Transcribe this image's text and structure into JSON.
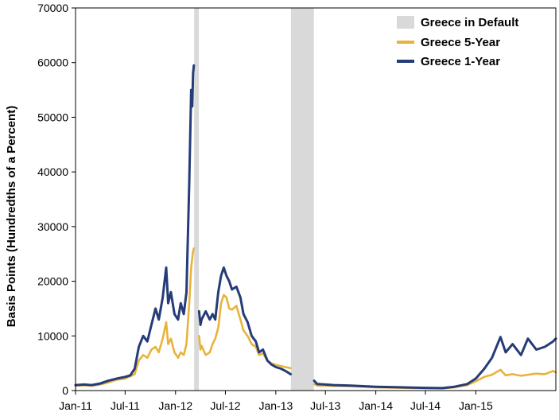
{
  "chart_data": {
    "type": "line",
    "title": "",
    "xlabel": "",
    "ylabel": "Basis Points (Hundredths of a Percent)",
    "ylim": [
      0,
      70000
    ],
    "xlim": [
      "2011-01-01",
      "2015-10-20"
    ],
    "grid": false,
    "legend_position": "top-right",
    "y_ticks": [
      "0",
      "10000",
      "20000",
      "30000",
      "40000",
      "50000",
      "60000",
      "70000"
    ],
    "x_ticks": [
      {
        "label": "Jan-11",
        "date": "2011-01-01"
      },
      {
        "label": "Jul-11",
        "date": "2011-07-01"
      },
      {
        "label": "Jan-12",
        "date": "2012-01-01"
      },
      {
        "label": "Jul-12",
        "date": "2012-07-01"
      },
      {
        "label": "Jan-13",
        "date": "2013-01-01"
      },
      {
        "label": "Jul-13",
        "date": "2013-07-01"
      },
      {
        "label": "Jan-14",
        "date": "2014-01-01"
      },
      {
        "label": "Jul-14",
        "date": "2014-07-01"
      },
      {
        "label": "Jan-15",
        "date": "2015-01-01"
      }
    ],
    "default_periods": {
      "name": "Greece in Default",
      "color": "#d9d9d9",
      "ranges": [
        [
          "2012-03-09",
          "2012-03-26"
        ],
        [
          "2013-02-25",
          "2013-05-20"
        ]
      ]
    },
    "series": [
      {
        "name": "Greece 5-Year",
        "color": "#e8b33c",
        "segments": [
          [
            [
              "2011-01-01",
              900
            ],
            [
              "2011-02-01",
              950
            ],
            [
              "2011-03-01",
              900
            ],
            [
              "2011-04-01",
              1100
            ],
            [
              "2011-05-01",
              1500
            ],
            [
              "2011-06-01",
              2000
            ],
            [
              "2011-07-01",
              2200
            ],
            [
              "2011-07-20",
              2600
            ],
            [
              "2011-08-05",
              3000
            ],
            [
              "2011-08-20",
              5500
            ],
            [
              "2011-09-05",
              6500
            ],
            [
              "2011-09-20",
              6000
            ],
            [
              "2011-10-05",
              7500
            ],
            [
              "2011-10-20",
              8000
            ],
            [
              "2011-11-01",
              7000
            ],
            [
              "2011-11-15",
              9500
            ],
            [
              "2011-11-28",
              12500
            ],
            [
              "2011-12-05",
              8500
            ],
            [
              "2011-12-15",
              9500
            ],
            [
              "2011-12-28",
              7000
            ],
            [
              "2012-01-10",
              6000
            ],
            [
              "2012-01-20",
              7000
            ],
            [
              "2012-01-31",
              6500
            ],
            [
              "2012-02-10",
              8500
            ],
            [
              "2012-02-20",
              16000
            ],
            [
              "2012-02-27",
              22500
            ],
            [
              "2012-03-05",
              25500
            ],
            [
              "2012-03-08",
              26000
            ]
          ],
          [
            [
              "2012-03-27",
              10000
            ],
            [
              "2012-04-01",
              7500
            ],
            [
              "2012-04-05",
              8200
            ],
            [
              "2012-04-20",
              6500
            ],
            [
              "2012-05-05",
              7000
            ],
            [
              "2012-05-15",
              8500
            ],
            [
              "2012-05-25",
              9500
            ],
            [
              "2012-06-05",
              11500
            ],
            [
              "2012-06-15",
              16000
            ],
            [
              "2012-06-25",
              17500
            ],
            [
              "2012-07-05",
              17000
            ],
            [
              "2012-07-15",
              15000
            ],
            [
              "2012-07-25",
              14800
            ],
            [
              "2012-08-10",
              15500
            ],
            [
              "2012-08-25",
              13000
            ],
            [
              "2012-09-05",
              11000
            ],
            [
              "2012-09-20",
              10000
            ],
            [
              "2012-10-05",
              8500
            ],
            [
              "2012-10-20",
              8000
            ],
            [
              "2012-11-01",
              6500
            ],
            [
              "2012-11-15",
              6800
            ],
            [
              "2012-12-01",
              5500
            ],
            [
              "2012-12-15",
              5000
            ],
            [
              "2013-01-01",
              4700
            ],
            [
              "2013-01-20",
              4500
            ],
            [
              "2013-02-05",
              4300
            ],
            [
              "2013-02-24",
              4100
            ]
          ],
          [
            [
              "2013-05-21",
              1200
            ],
            [
              "2013-06-01",
              900
            ],
            [
              "2013-07-01",
              900
            ],
            [
              "2013-08-01",
              850
            ],
            [
              "2013-10-01",
              800
            ],
            [
              "2014-01-01",
              600
            ],
            [
              "2014-04-01",
              500
            ],
            [
              "2014-07-01",
              420
            ],
            [
              "2014-09-01",
              400
            ],
            [
              "2014-10-15",
              600
            ],
            [
              "2014-12-01",
              1000
            ],
            [
              "2015-01-01",
              1700
            ],
            [
              "2015-02-01",
              2500
            ],
            [
              "2015-03-01",
              2900
            ],
            [
              "2015-04-01",
              3800
            ],
            [
              "2015-04-20",
              2800
            ],
            [
              "2015-05-15",
              3000
            ],
            [
              "2015-06-15",
              2700
            ],
            [
              "2015-07-10",
              2900
            ],
            [
              "2015-08-10",
              3100
            ],
            [
              "2015-09-10",
              3000
            ],
            [
              "2015-10-10",
              3600
            ],
            [
              "2015-10-20",
              3300
            ]
          ]
        ]
      },
      {
        "name": "Greece 1-Year",
        "color": "#253c78",
        "segments": [
          [
            [
              "2011-01-01",
              1000
            ],
            [
              "2011-02-01",
              1100
            ],
            [
              "2011-03-01",
              1000
            ],
            [
              "2011-04-01",
              1300
            ],
            [
              "2011-05-01",
              1800
            ],
            [
              "2011-06-01",
              2200
            ],
            [
              "2011-07-01",
              2500
            ],
            [
              "2011-07-20",
              2800
            ],
            [
              "2011-08-05",
              4000
            ],
            [
              "2011-08-20",
              8000
            ],
            [
              "2011-09-05",
              10000
            ],
            [
              "2011-09-20",
              9000
            ],
            [
              "2011-10-05",
              12000
            ],
            [
              "2011-10-20",
              15000
            ],
            [
              "2011-11-01",
              13000
            ],
            [
              "2011-11-15",
              17000
            ],
            [
              "2011-11-28",
              22500
            ],
            [
              "2011-12-05",
              16000
            ],
            [
              "2011-12-15",
              18000
            ],
            [
              "2011-12-28",
              14000
            ],
            [
              "2012-01-10",
              13000
            ],
            [
              "2012-01-20",
              16000
            ],
            [
              "2012-01-31",
              14000
            ],
            [
              "2012-02-10",
              18000
            ],
            [
              "2012-02-20",
              38000
            ],
            [
              "2012-02-27",
              55000
            ],
            [
              "2012-03-02",
              52000
            ],
            [
              "2012-03-05",
              58000
            ],
            [
              "2012-03-08",
              59500
            ]
          ],
          [
            [
              "2012-03-27",
              14500
            ],
            [
              "2012-04-01",
              12000
            ],
            [
              "2012-04-05",
              13000
            ],
            [
              "2012-04-20",
              14500
            ],
            [
              "2012-05-05",
              13000
            ],
            [
              "2012-05-15",
              14000
            ],
            [
              "2012-05-25",
              13000
            ],
            [
              "2012-06-05",
              18000
            ],
            [
              "2012-06-15",
              21000
            ],
            [
              "2012-06-25",
              22500
            ],
            [
              "2012-07-05",
              21000
            ],
            [
              "2012-07-15",
              20000
            ],
            [
              "2012-07-25",
              18500
            ],
            [
              "2012-08-10",
              19000
            ],
            [
              "2012-08-25",
              17000
            ],
            [
              "2012-09-05",
              14000
            ],
            [
              "2012-09-20",
              12500
            ],
            [
              "2012-10-05",
              10000
            ],
            [
              "2012-10-20",
              9000
            ],
            [
              "2012-11-01",
              7000
            ],
            [
              "2012-11-15",
              7500
            ],
            [
              "2012-12-01",
              5500
            ],
            [
              "2012-12-15",
              4800
            ],
            [
              "2013-01-01",
              4300
            ],
            [
              "2013-01-20",
              4000
            ],
            [
              "2013-02-05",
              3600
            ],
            [
              "2013-02-24",
              3000
            ]
          ],
          [
            [
              "2013-05-21",
              1800
            ],
            [
              "2013-06-01",
              1200
            ],
            [
              "2013-07-01",
              1100
            ],
            [
              "2013-08-01",
              1000
            ],
            [
              "2013-10-01",
              900
            ],
            [
              "2014-01-01",
              700
            ],
            [
              "2014-04-01",
              600
            ],
            [
              "2014-07-01",
              500
            ],
            [
              "2014-09-01",
              450
            ],
            [
              "2014-10-15",
              700
            ],
            [
              "2014-12-01",
              1200
            ],
            [
              "2015-01-01",
              2200
            ],
            [
              "2015-02-01",
              4000
            ],
            [
              "2015-03-01",
              6000
            ],
            [
              "2015-04-01",
              9800
            ],
            [
              "2015-04-20",
              7000
            ],
            [
              "2015-05-15",
              8500
            ],
            [
              "2015-06-15",
              6500
            ],
            [
              "2015-07-10",
              9500
            ],
            [
              "2015-08-10",
              7500
            ],
            [
              "2015-09-10",
              8000
            ],
            [
              "2015-10-10",
              9000
            ],
            [
              "2015-10-20",
              9500
            ]
          ]
        ]
      }
    ]
  }
}
